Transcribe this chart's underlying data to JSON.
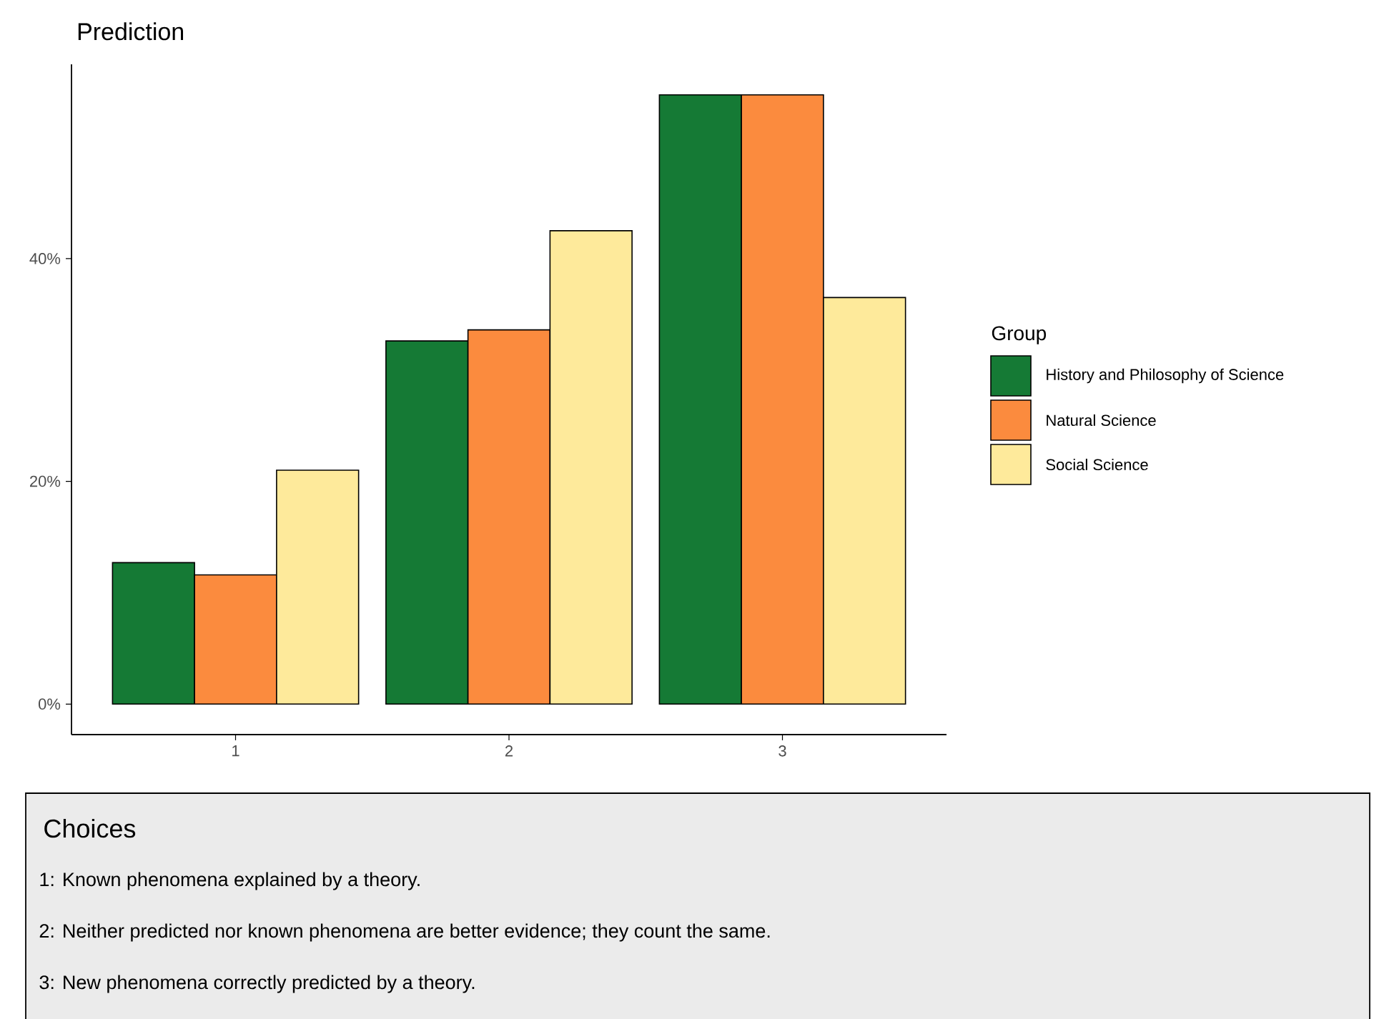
{
  "chart_data": {
    "type": "bar",
    "title": "Prediction",
    "legend_title": "Group",
    "categories": [
      "1",
      "2",
      "3"
    ],
    "series": [
      {
        "name": "History and Philosophy of Science",
        "color": "#157a35",
        "values": [
          12.7,
          32.6,
          54.7
        ]
      },
      {
        "name": "Natural Science",
        "color": "#fb8b3e",
        "values": [
          11.6,
          33.6,
          54.7
        ]
      },
      {
        "name": "Social Science",
        "color": "#feea9b",
        "values": [
          21.0,
          42.5,
          36.5
        ]
      }
    ],
    "ylim": [
      -2.74,
      57.44
    ],
    "yticks": [
      {
        "value": 0,
        "label": "0%"
      },
      {
        "value": 20,
        "label": "20%"
      },
      {
        "value": 40,
        "label": "40%"
      }
    ],
    "grid": false,
    "legend": "right",
    "annotations": [
      "Choices",
      "1: Known phenomena explained by a theory.",
      "2: Neither predicted nor known phenomena are better evidence; they count the same.",
      "3: New phenomena correctly predicted by a theory."
    ]
  }
}
